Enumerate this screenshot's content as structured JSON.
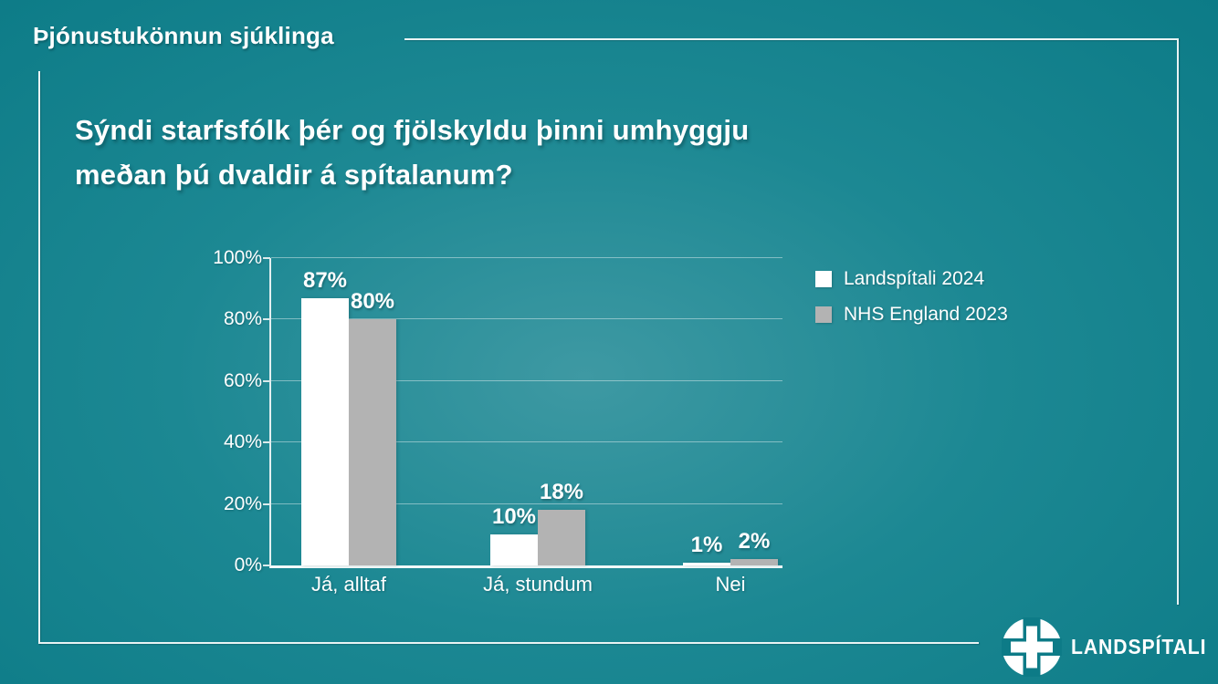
{
  "slide": {
    "header": "Þjónustukönnun sjúklinga",
    "title_line1": "Sýndi starfsfólk þér og fjölskyldu þinni umhyggju",
    "title_line2": "meðan þú dvaldir á spítalanum?",
    "logo_text": "LANDSPÍTALI"
  },
  "colors": {
    "background_center": "#3e99a3",
    "background_edge": "#0b7a86",
    "frame_line": "#e9f3f4",
    "text": "#ffffff"
  },
  "chart_data": {
    "type": "bar",
    "title": "Sýndi starfsfólk þér og fjölskyldu þinni umhyggju meðan þú dvaldir á spítalanum?",
    "categories": [
      "Já, alltaf",
      "Já, stundum",
      "Nei"
    ],
    "series": [
      {
        "name": "Landspítali 2024",
        "color": "#ffffff",
        "values": [
          87,
          10,
          1
        ]
      },
      {
        "name": "NHS England 2023",
        "color": "#b3b3b3",
        "values": [
          80,
          18,
          2
        ]
      }
    ],
    "value_suffix": "%",
    "xlabel": "",
    "ylabel": "",
    "ylim": [
      0,
      100
    ],
    "yticks": [
      0,
      20,
      40,
      60,
      80,
      100
    ],
    "ytick_suffix": "%",
    "grid": true,
    "legend_position": "top-right"
  }
}
